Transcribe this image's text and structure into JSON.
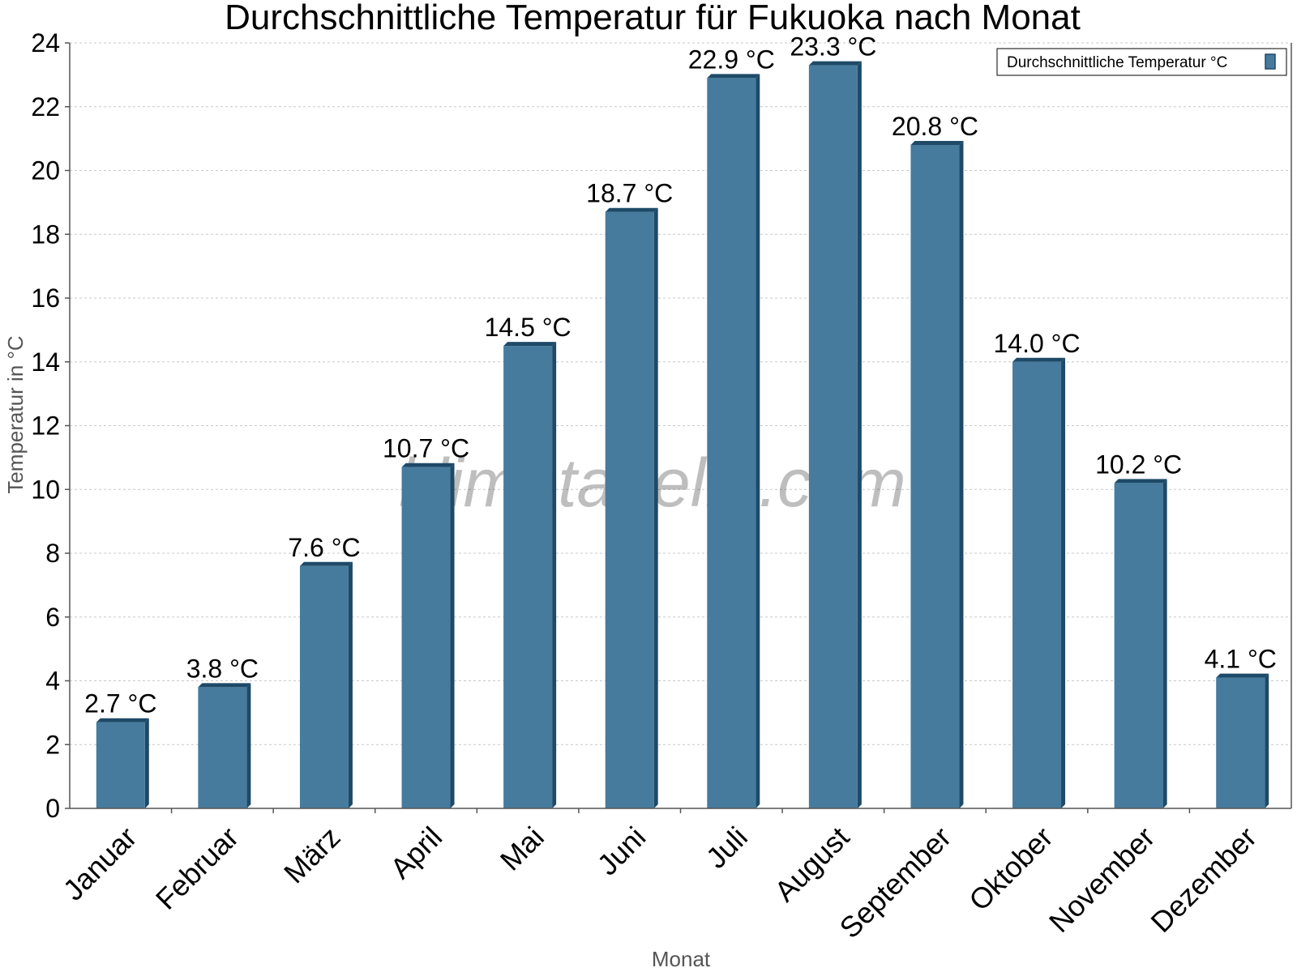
{
  "chart_data": {
    "type": "bar",
    "title": "Durchschnittliche Temperatur für Fukuoka nach Monat",
    "xlabel": "Monat",
    "ylabel": "Temperatur in °C",
    "categories": [
      "Januar",
      "Februar",
      "März",
      "April",
      "Mai",
      "Juni",
      "Juli",
      "August",
      "September",
      "Oktober",
      "November",
      "Dezember"
    ],
    "series": [
      {
        "name": "Durchschnittliche Temperatur °C",
        "values": [
          2.7,
          3.8,
          7.6,
          10.7,
          14.5,
          18.7,
          22.9,
          23.3,
          20.8,
          14.0,
          10.2,
          4.1
        ],
        "labels": [
          "2.7 °C",
          "3.8 °C",
          "7.6 °C",
          "10.7 °C",
          "14.5 °C",
          "18.7 °C",
          "22.9 °C",
          "23.3 °C",
          "20.8 °C",
          "14.0 °C",
          "10.2 °C",
          "4.1 °C"
        ],
        "color": "#467b9d",
        "edge_color": "#1e4a68"
      }
    ],
    "ylim": [
      0,
      24
    ],
    "yticks": [
      0,
      2,
      4,
      6,
      8,
      10,
      12,
      14,
      16,
      18,
      20,
      22,
      24
    ],
    "grid": true,
    "legend_position": "top-right"
  },
  "watermark": "klimatabelle.com"
}
